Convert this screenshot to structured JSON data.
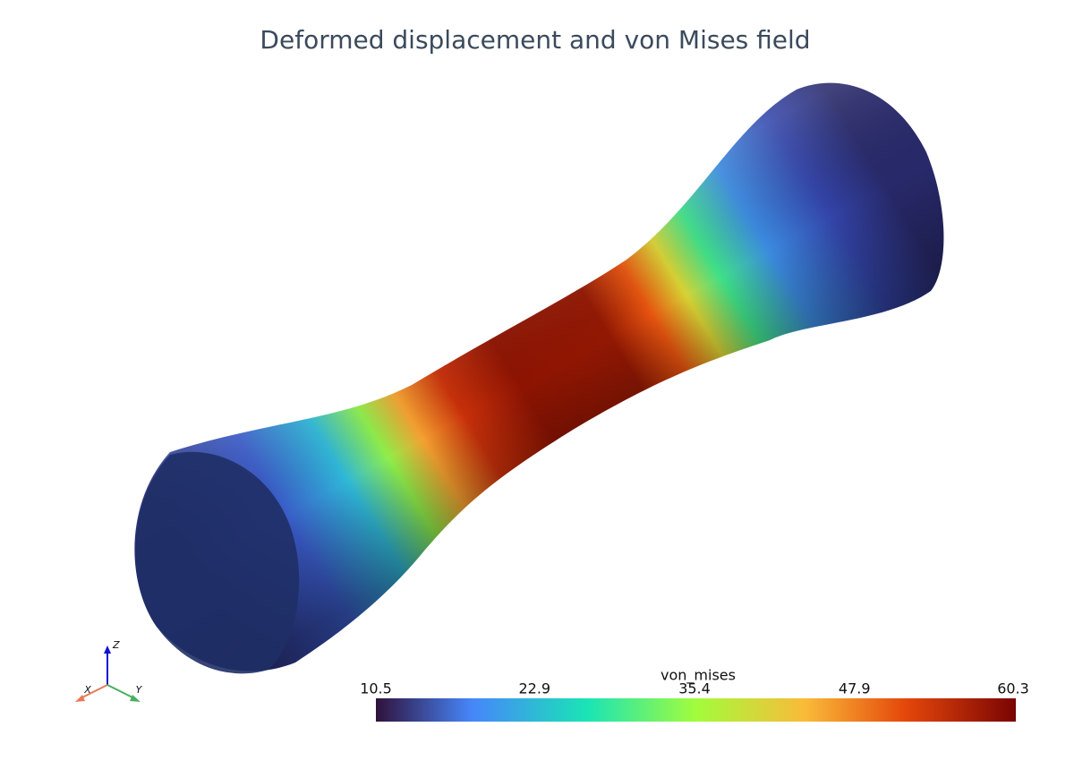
{
  "title": "Deformed displacement and von Mises field",
  "colorbar": {
    "title": "von_mises",
    "range": [
      10.5,
      60.3
    ],
    "ticks": [
      10.5,
      22.9,
      35.4,
      47.9,
      60.3
    ]
  },
  "axes": {
    "x": "X",
    "y": "Y",
    "z": "Z"
  }
}
